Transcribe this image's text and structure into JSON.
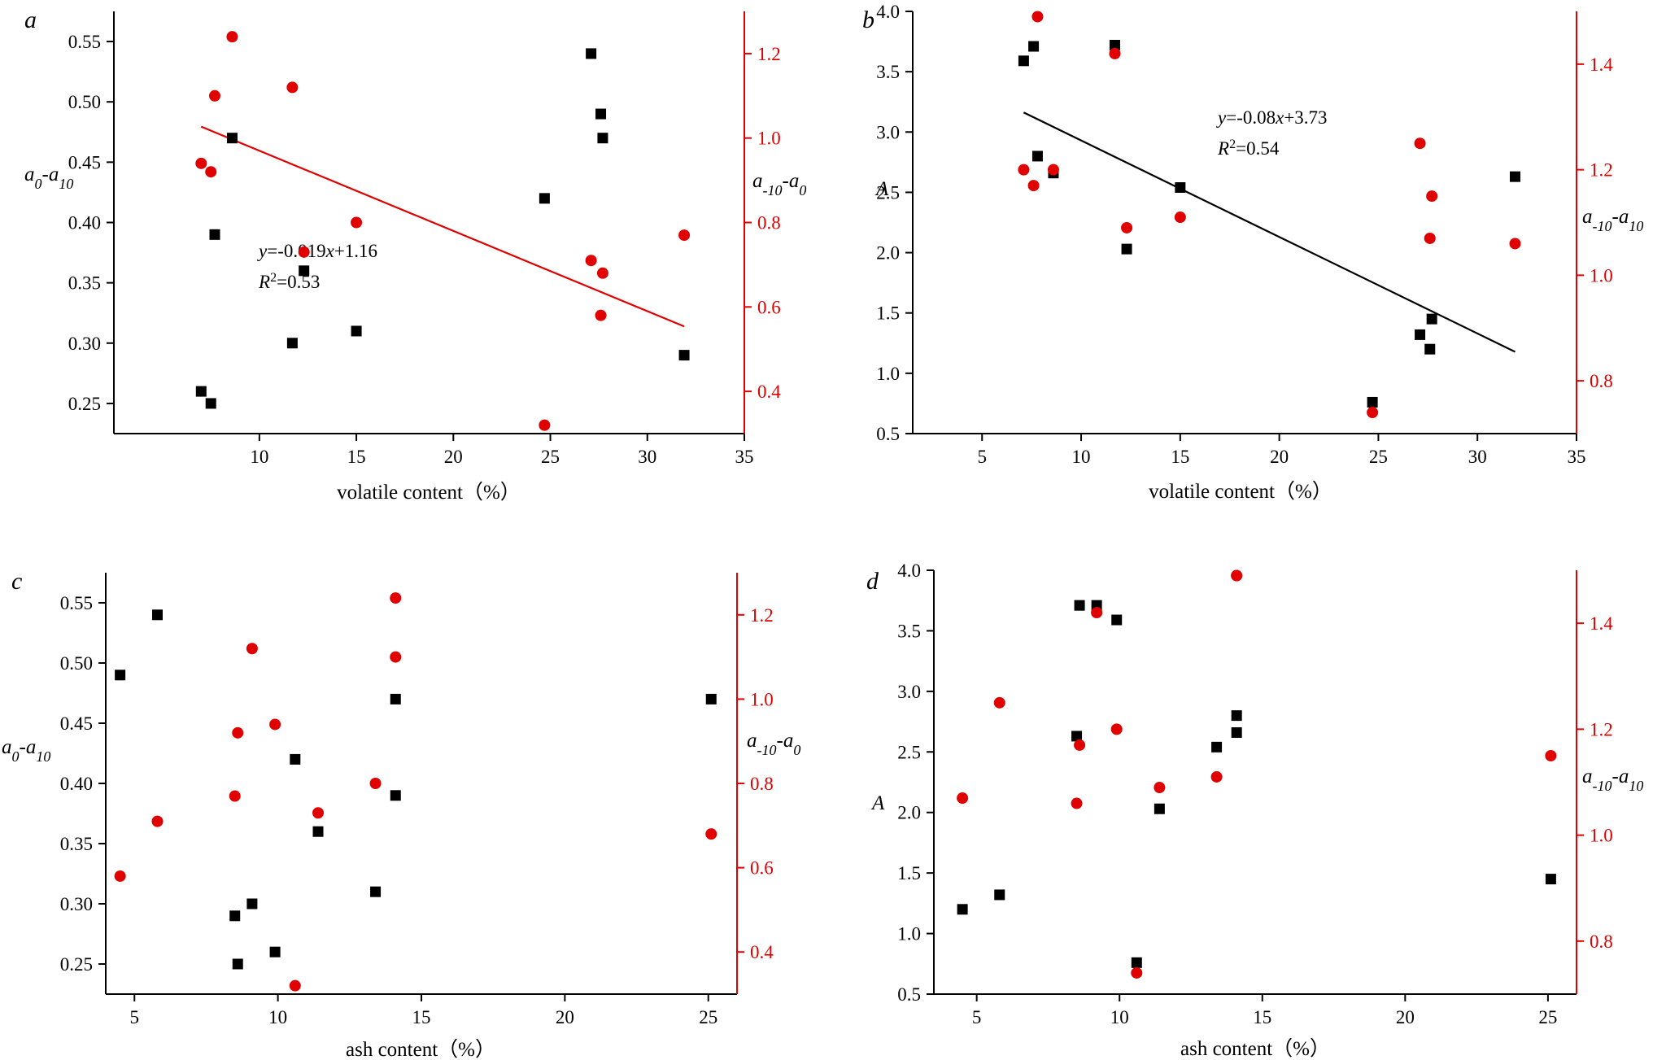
{
  "colors": {
    "black_series": "#000000",
    "red_series": "#e00000"
  },
  "chart_data": [
    {
      "type": "scatter",
      "panel_label": "a",
      "xlabel": "volatile content（%）",
      "ylabel_left": "a0-a10",
      "ylabel_right": "a-10-a0",
      "xlim": [
        2.5,
        35
      ],
      "ylim_left": [
        0.225,
        0.575
      ],
      "ylim_right": [
        0.3,
        1.3
      ],
      "xticks": [
        10,
        15,
        20,
        25,
        30,
        35
      ],
      "yticks_left": [
        0.25,
        0.3,
        0.35,
        0.4,
        0.45,
        0.5,
        0.55
      ],
      "yticks_right": [
        0.4,
        0.6,
        0.8,
        1.0,
        1.2
      ],
      "series": [
        {
          "name": "a0-a10",
          "axis": "left",
          "color": "#000000",
          "marker": "square",
          "x": [
            7.0,
            7.5,
            7.7,
            8.6,
            11.7,
            12.3,
            15.0,
            24.7,
            27.1,
            27.6,
            27.7,
            31.9
          ],
          "y": [
            0.26,
            0.25,
            0.39,
            0.47,
            0.3,
            0.36,
            0.31,
            0.42,
            0.54,
            0.49,
            0.47,
            0.29
          ]
        },
        {
          "name": "a-10-a0",
          "axis": "right",
          "color": "#e00000",
          "marker": "circle",
          "x": [
            7.0,
            7.5,
            7.7,
            8.6,
            11.7,
            12.3,
            15.0,
            24.7,
            27.1,
            27.6,
            27.7,
            31.9
          ],
          "y": [
            0.94,
            0.92,
            1.1,
            1.24,
            1.12,
            0.73,
            0.8,
            0.32,
            0.71,
            0.58,
            0.68,
            0.77
          ]
        }
      ],
      "fit": {
        "axis": "right",
        "color": "#e00000",
        "slope": -0.019,
        "intercept": 1.16,
        "x_range": [
          7.0,
          31.9
        ],
        "eq_label": "y=-0.019x+1.16",
        "r2_label": "R2=0.53"
      }
    },
    {
      "type": "scatter",
      "panel_label": "b",
      "xlabel": "volatile content（%）",
      "ylabel_left": "A",
      "ylabel_right": "a-10-a10",
      "xlim": [
        1.5,
        35
      ],
      "ylim_left": [
        0.5,
        4.0
      ],
      "ylim_right": [
        0.7,
        1.5
      ],
      "xticks": [
        5,
        10,
        15,
        20,
        25,
        30,
        35
      ],
      "yticks_left": [
        0.5,
        1.0,
        1.5,
        2.0,
        2.5,
        3.0,
        3.5,
        4.0
      ],
      "yticks_right": [
        0.8,
        1.0,
        1.2,
        1.4
      ],
      "series": [
        {
          "name": "A",
          "axis": "left",
          "color": "#000000",
          "marker": "square",
          "x": [
            7.1,
            7.6,
            7.8,
            8.6,
            11.7,
            12.3,
            15.0,
            24.7,
            27.1,
            27.6,
            27.7,
            31.9
          ],
          "y": [
            3.59,
            3.71,
            2.8,
            2.66,
            3.72,
            2.03,
            2.54,
            0.76,
            1.32,
            1.2,
            1.45,
            2.63
          ]
        },
        {
          "name": "a-10-a10",
          "axis": "right",
          "color": "#e00000",
          "marker": "circle",
          "x": [
            7.1,
            7.6,
            7.8,
            8.6,
            11.7,
            12.3,
            15.0,
            24.7,
            27.1,
            27.6,
            27.7,
            31.9
          ],
          "y": [
            1.2,
            1.17,
            1.49,
            1.2,
            1.42,
            1.09,
            1.11,
            0.74,
            1.25,
            1.07,
            1.15,
            1.06
          ]
        }
      ],
      "fit": {
        "axis": "left",
        "color": "#000000",
        "slope": -0.08,
        "intercept": 3.73,
        "x_range": [
          7.1,
          31.9
        ],
        "eq_label": "y=-0.08x+3.73",
        "r2_label": "R2=0.54"
      }
    },
    {
      "type": "scatter",
      "panel_label": "c",
      "xlabel": "ash content（%）",
      "ylabel_left": "a0-a10",
      "ylabel_right": "a-10-a0",
      "xlim": [
        4.0,
        26.0
      ],
      "ylim_left": [
        0.225,
        0.575
      ],
      "ylim_right": [
        0.3,
        1.3
      ],
      "xticks": [
        5,
        10,
        15,
        20,
        25
      ],
      "yticks_left": [
        0.25,
        0.3,
        0.35,
        0.4,
        0.45,
        0.5,
        0.55
      ],
      "yticks_right": [
        0.4,
        0.6,
        0.8,
        1.0,
        1.2
      ],
      "series": [
        {
          "name": "a0-a10",
          "axis": "left",
          "color": "#000000",
          "marker": "square",
          "x": [
            4.5,
            5.8,
            8.5,
            8.6,
            9.1,
            9.9,
            10.6,
            11.4,
            13.4,
            14.1,
            14.1,
            25.1
          ],
          "y": [
            0.49,
            0.54,
            0.29,
            0.25,
            0.3,
            0.26,
            0.42,
            0.36,
            0.31,
            0.47,
            0.39,
            0.47
          ]
        },
        {
          "name": "a-10-a0",
          "axis": "right",
          "color": "#e00000",
          "marker": "circle",
          "x": [
            4.5,
            5.8,
            8.5,
            8.6,
            9.1,
            9.9,
            10.6,
            11.4,
            13.4,
            14.1,
            14.1,
            25.1
          ],
          "y": [
            0.58,
            0.71,
            0.77,
            0.92,
            1.12,
            0.94,
            0.32,
            0.73,
            0.8,
            1.24,
            1.1,
            0.68
          ]
        }
      ]
    },
    {
      "type": "scatter",
      "panel_label": "d",
      "xlabel": "ash content（%）",
      "ylabel_left": "A",
      "ylabel_right": "a-10-a10",
      "xlim": [
        3.5,
        26.0
      ],
      "ylim_left": [
        0.5,
        4.0
      ],
      "ylim_right": [
        0.7,
        1.5
      ],
      "xticks": [
        5,
        10,
        15,
        20,
        25
      ],
      "yticks_left": [
        0.5,
        1.0,
        1.5,
        2.0,
        2.5,
        3.0,
        3.5,
        4.0
      ],
      "yticks_right": [
        0.8,
        1.0,
        1.2,
        1.4
      ],
      "series": [
        {
          "name": "A",
          "axis": "left",
          "color": "#000000",
          "marker": "square",
          "x": [
            4.5,
            5.8,
            8.5,
            8.6,
            9.2,
            9.9,
            10.6,
            11.4,
            13.4,
            14.1,
            14.1,
            25.1
          ],
          "y": [
            1.2,
            1.32,
            2.63,
            3.71,
            3.71,
            3.59,
            0.76,
            2.03,
            2.54,
            2.8,
            2.66,
            1.45
          ]
        },
        {
          "name": "a-10-a10",
          "axis": "right",
          "color": "#e00000",
          "marker": "circle",
          "x": [
            4.5,
            5.8,
            8.5,
            8.6,
            9.2,
            9.9,
            10.6,
            11.4,
            13.4,
            14.1,
            14.1,
            25.1
          ],
          "y": [
            1.07,
            1.25,
            1.06,
            1.17,
            1.42,
            1.2,
            0.74,
            1.09,
            1.11,
            1.49,
            1.49,
            1.15
          ]
        }
      ]
    }
  ]
}
